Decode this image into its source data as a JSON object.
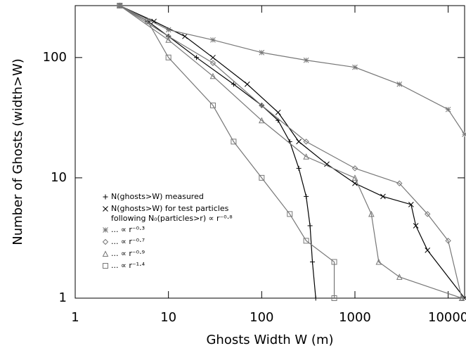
{
  "chart_data": {
    "type": "line",
    "log_x": true,
    "log_y": true,
    "x_label": "Ghosts Width W (m)",
    "y_label": "Number of Ghosts (width>W)",
    "xlim": [
      1,
      15000
    ],
    "ylim": [
      1,
      270
    ],
    "xticks": [
      1,
      10,
      100,
      1000,
      10000
    ],
    "yticks": [
      1,
      10,
      100
    ],
    "series": [
      {
        "name": "N(ghosts>W) measured",
        "color": "#000000",
        "marker": "plus",
        "x": [
          3,
          6,
          10,
          20,
          50,
          100,
          150,
          200,
          250,
          300,
          330,
          350,
          380
        ],
        "values": [
          270,
          200,
          150,
          100,
          60,
          40,
          30,
          20,
          12,
          7,
          4,
          2,
          1
        ]
      },
      {
        "name": "N(ghosts>W) for test particles",
        "color": "#000000",
        "marker": "cross",
        "x": [
          3,
          7,
          15,
          30,
          70,
          150,
          250,
          500,
          1000,
          2000,
          4000,
          4500,
          6000,
          15000
        ],
        "values": [
          270,
          200,
          150,
          100,
          60,
          35,
          20,
          13,
          9,
          7,
          6,
          4,
          2.5,
          1
        ]
      },
      {
        "name": "... ∝ r⁻⁰·³",
        "color": "#777777",
        "marker": "star",
        "x": [
          3,
          10,
          30,
          100,
          300,
          1000,
          3000,
          10000,
          15000
        ],
        "values": [
          270,
          170,
          140,
          110,
          95,
          83,
          60,
          37,
          23
        ]
      },
      {
        "name": "... ∝ r⁻⁰·⁷",
        "color": "#777777",
        "marker": "diamond",
        "x": [
          3,
          10,
          30,
          100,
          300,
          1000,
          3000,
          6000,
          10000,
          14000
        ],
        "values": [
          270,
          150,
          90,
          40,
          20,
          12,
          9,
          5,
          3,
          1
        ]
      },
      {
        "name": "... ∝ r⁻⁰·⁹",
        "color": "#777777",
        "marker": "triangle",
        "x": [
          3,
          10,
          30,
          100,
          300,
          1000,
          1500,
          1800,
          3000,
          14000
        ],
        "values": [
          270,
          140,
          70,
          30,
          15,
          10,
          5,
          2,
          1.5,
          1
        ]
      },
      {
        "name": "... ∝ r⁻¹·⁴",
        "color": "#777777",
        "marker": "square",
        "x": [
          3,
          6,
          10,
          30,
          50,
          100,
          200,
          300,
          600,
          600
        ],
        "values": [
          270,
          200,
          100,
          40,
          20,
          10,
          5,
          3,
          2,
          1
        ]
      }
    ],
    "annotations": [
      "following N₀(particles>r) ∝ r⁻⁰·⁸"
    ]
  }
}
